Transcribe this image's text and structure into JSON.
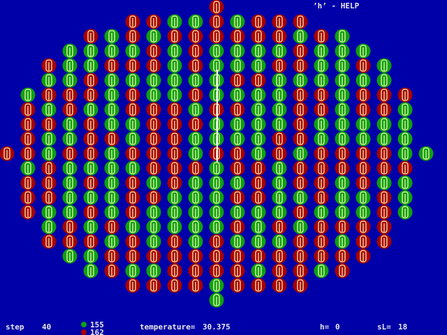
{
  "header": {
    "help": "’h’  - HELP"
  },
  "status": {
    "step_label": "step",
    "step": 40,
    "green_count": 155,
    "red_count": 162,
    "temperature_label": "temperature=",
    "temperature": 30.375,
    "h_label": "h=",
    "h": 0,
    "sl_label": "sL=",
    "sl": 18
  }
}
